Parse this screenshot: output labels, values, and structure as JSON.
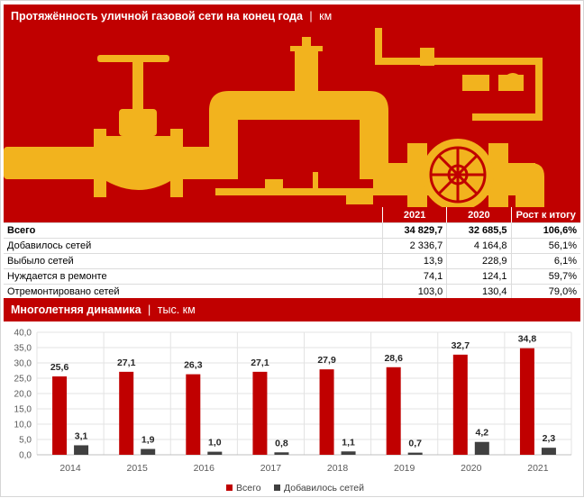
{
  "header": {
    "title": "Протяжённость уличной газовой сети на конец года",
    "separator": "|",
    "unit": "км"
  },
  "table": {
    "columns": [
      "",
      "2021",
      "2020",
      "Рост к итогу"
    ],
    "rows": [
      {
        "label": "Всего",
        "v2021": "34 829,7",
        "v2020": "32 685,5",
        "growth": "106,6%"
      },
      {
        "label": "Добавилось сетей",
        "v2021": "2 336,7",
        "v2020": "4 164,8",
        "growth": "56,1%"
      },
      {
        "label": "Выбыло сетей",
        "v2021": "13,9",
        "v2020": "228,9",
        "growth": "6,1%"
      },
      {
        "label": "Нуждается в ремонте",
        "v2021": "74,1",
        "v2020": "124,1",
        "growth": "59,7%"
      },
      {
        "label": "Отремонтировано сетей",
        "v2021": "103,0",
        "v2020": "130,4",
        "growth": "79,0%"
      }
    ]
  },
  "section2": {
    "title": "Многолетняя динамика",
    "separator": "|",
    "unit": "тыс. км"
  },
  "colors": {
    "accent": "#c00000",
    "pipe": "#f2b31e",
    "series_total": "#c00000",
    "series_added": "#404040"
  },
  "chart_data": {
    "type": "bar",
    "categories": [
      "2014",
      "2015",
      "2016",
      "2017",
      "2018",
      "2019",
      "2020",
      "2021"
    ],
    "series": [
      {
        "name": "Всего",
        "values": [
          25.6,
          27.1,
          26.3,
          27.1,
          27.9,
          28.6,
          32.7,
          34.8
        ],
        "labels": [
          "25,6",
          "27,1",
          "26,3",
          "27,1",
          "27,9",
          "28,6",
          "32,7",
          "34,8"
        ],
        "color": "#c00000"
      },
      {
        "name": "Добавилось сетей",
        "values": [
          3.1,
          1.9,
          1.0,
          0.8,
          1.1,
          0.7,
          4.2,
          2.3
        ],
        "labels": [
          "3,1",
          "1,9",
          "1,0",
          "0,8",
          "1,1",
          "0,7",
          "4,2",
          "2,3"
        ],
        "color": "#404040"
      }
    ],
    "ylim": [
      0,
      40
    ],
    "yticks": [
      "0,0",
      "5,0",
      "10,0",
      "15,0",
      "20,0",
      "25,0",
      "30,0",
      "35,0",
      "40,0"
    ],
    "grid": true,
    "legend": "bottom"
  }
}
